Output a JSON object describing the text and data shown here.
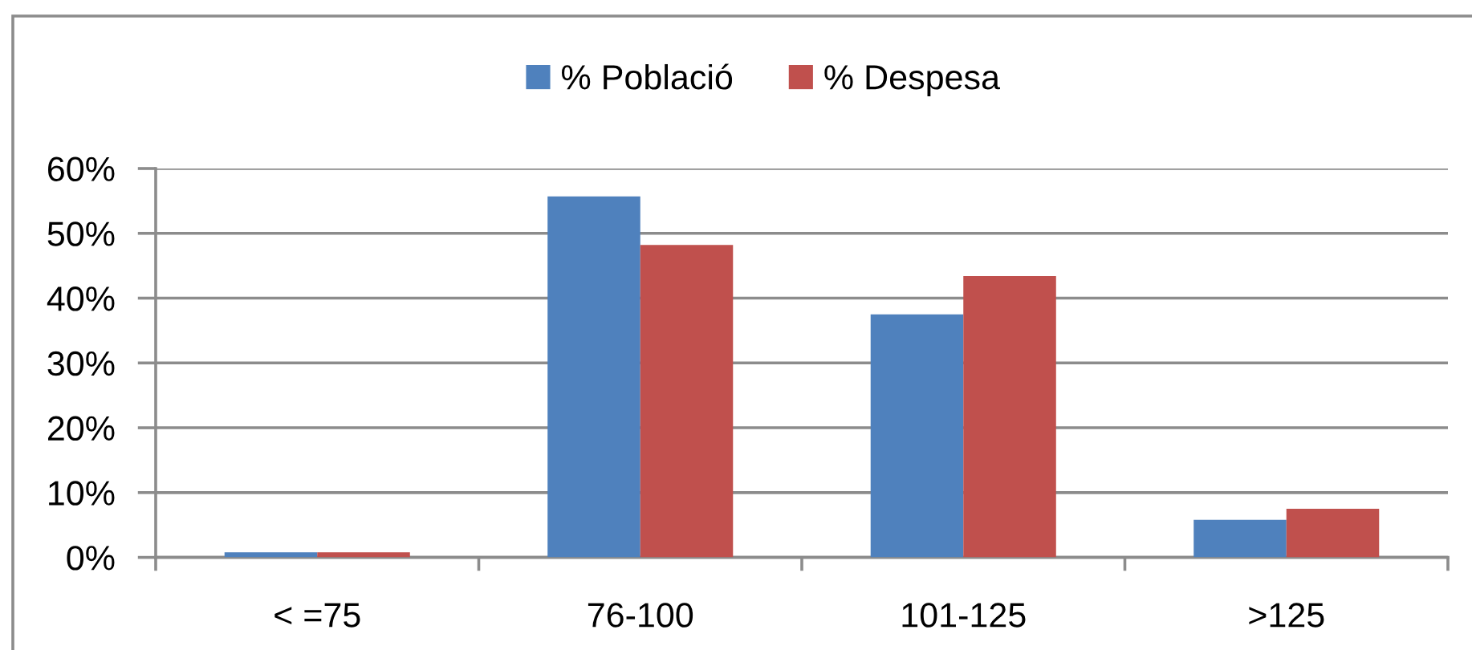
{
  "chart_data": {
    "type": "bar",
    "categories": [
      "< =75",
      "76-100",
      "101-125",
      ">125"
    ],
    "series": [
      {
        "name": "% Població",
        "color": "#4f81bd",
        "values": [
          0.8,
          55.7,
          37.5,
          5.8
        ]
      },
      {
        "name": "% Despesa",
        "color": "#c0504d",
        "values": [
          0.8,
          48.2,
          43.4,
          7.5
        ]
      }
    ],
    "ylim": [
      0,
      60
    ],
    "yticks": [
      {
        "value": 0,
        "label": "0%"
      },
      {
        "value": 10,
        "label": "10%"
      },
      {
        "value": 20,
        "label": "20%"
      },
      {
        "value": 30,
        "label": "30%"
      },
      {
        "value": 40,
        "label": "40%"
      },
      {
        "value": 50,
        "label": "50%"
      },
      {
        "value": 60,
        "label": "60%"
      }
    ],
    "grid": "y",
    "legend": "top"
  }
}
